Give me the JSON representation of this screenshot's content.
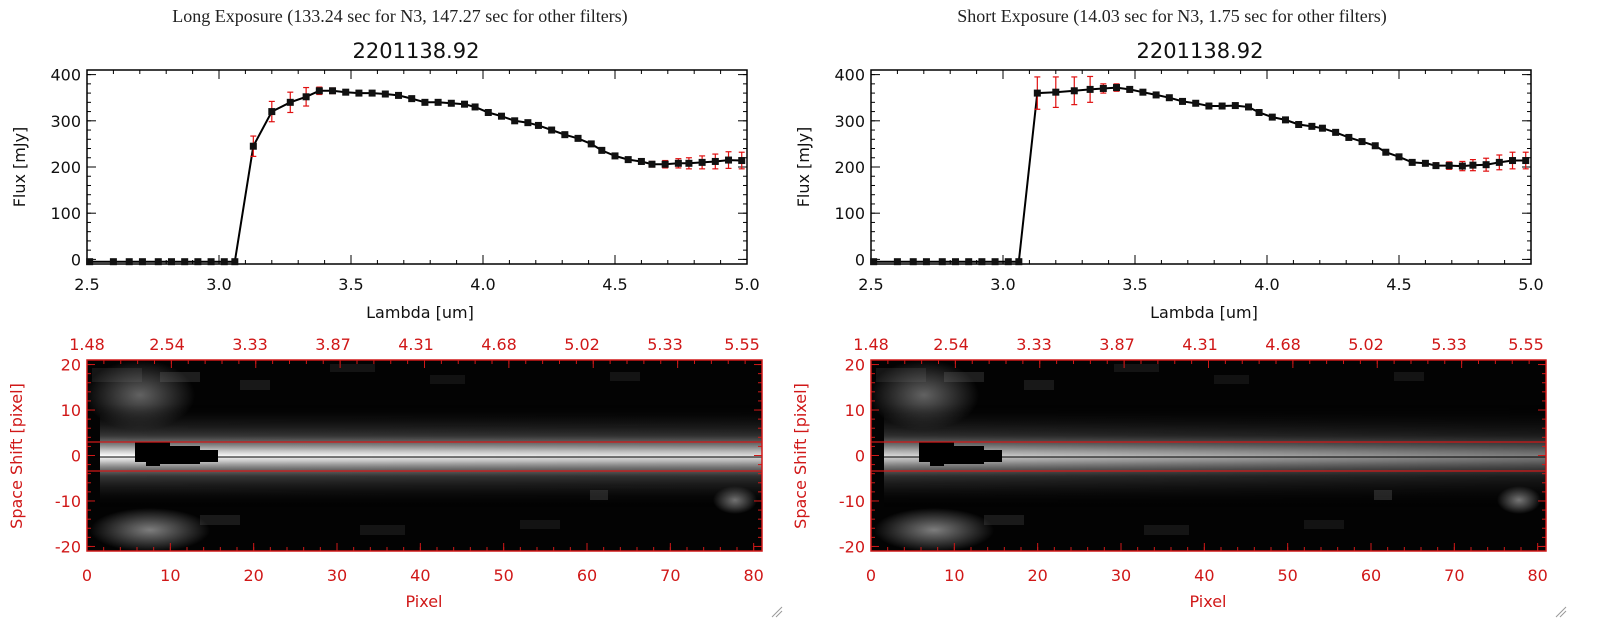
{
  "colors": {
    "data_line": "#000000",
    "error_bar": "#e01010",
    "marker": "#111111",
    "image_axis": "#d01818",
    "aperture_line": "#d01818"
  },
  "resize_grip_icon": "resize-grip-icon",
  "chart_data": [
    {
      "type": "line",
      "panel_title": "Long Exposure (133.24 sec for N3, 147.27 sec for other filters)",
      "title": "2201138.92",
      "xlabel": "Lambda [um]",
      "ylabel": "Flux [mJy]",
      "xlim": [
        2.5,
        5.0
      ],
      "ylim": [
        -10,
        410
      ],
      "xticks": [
        "2.5",
        "3.0",
        "3.5",
        "4.0",
        "4.5",
        "5.0"
      ],
      "yticks": [
        "0",
        "100",
        "200",
        "300",
        "400"
      ],
      "x": [
        2.51,
        2.6,
        2.66,
        2.71,
        2.77,
        2.82,
        2.87,
        2.92,
        2.97,
        3.02,
        3.06,
        3.13,
        3.2,
        3.27,
        3.33,
        3.38,
        3.43,
        3.48,
        3.53,
        3.58,
        3.63,
        3.68,
        3.73,
        3.78,
        3.83,
        3.88,
        3.93,
        3.97,
        4.02,
        4.07,
        4.12,
        4.17,
        4.21,
        4.26,
        4.31,
        4.36,
        4.41,
        4.45,
        4.5,
        4.55,
        4.6,
        4.64,
        4.69,
        4.74,
        4.78,
        4.83,
        4.88,
        4.93,
        4.98
      ],
      "y": [
        -5,
        -5,
        -5,
        -5,
        -5,
        -5,
        -5,
        -5,
        -5,
        -5,
        -5,
        245,
        320,
        340,
        352,
        365,
        365,
        362,
        360,
        360,
        358,
        355,
        348,
        340,
        340,
        338,
        336,
        330,
        318,
        310,
        300,
        296,
        290,
        280,
        270,
        262,
        250,
        236,
        224,
        216,
        212,
        206,
        206,
        208,
        208,
        210,
        212,
        215,
        214
      ],
      "yerr": [
        0,
        0,
        0,
        0,
        0,
        0,
        0,
        0,
        0,
        0,
        0,
        22,
        22,
        22,
        20,
        8,
        6,
        5,
        5,
        4,
        4,
        4,
        4,
        4,
        4,
        4,
        4,
        4,
        4,
        4,
        4,
        4,
        4,
        4,
        4,
        4,
        4,
        4,
        4,
        4,
        4,
        6,
        8,
        10,
        12,
        14,
        16,
        18,
        18
      ],
      "image_panel": {
        "xlabel": "Pixel",
        "ylabel": "Space Shift [pixel]",
        "xlim": [
          0,
          81
        ],
        "ylim": [
          -21,
          21
        ],
        "xticks": [
          "0",
          "10",
          "20",
          "30",
          "40",
          "50",
          "60",
          "70",
          "80"
        ],
        "yticks": [
          "-20",
          "-10",
          "0",
          "10",
          "20"
        ],
        "top_ticks": [
          "1.48",
          "2.54",
          "3.33",
          "3.87",
          "4.31",
          "4.68",
          "5.02",
          "5.33",
          "5.55"
        ],
        "aperture_rows": [
          -3,
          3
        ]
      }
    },
    {
      "type": "line",
      "panel_title": "Short Exposure (14.03 sec for N3, 1.75 sec for other filters)",
      "title": "2201138.92",
      "xlabel": "Lambda [um]",
      "ylabel": "Flux [mJy]",
      "xlim": [
        2.5,
        5.0
      ],
      "ylim": [
        -10,
        410
      ],
      "xticks": [
        "2.5",
        "3.0",
        "3.5",
        "4.0",
        "4.5",
        "5.0"
      ],
      "yticks": [
        "0",
        "100",
        "200",
        "300",
        "400"
      ],
      "x": [
        2.51,
        2.6,
        2.66,
        2.71,
        2.77,
        2.82,
        2.87,
        2.92,
        2.97,
        3.02,
        3.06,
        3.13,
        3.2,
        3.27,
        3.33,
        3.38,
        3.43,
        3.48,
        3.53,
        3.58,
        3.63,
        3.68,
        3.73,
        3.78,
        3.83,
        3.88,
        3.93,
        3.97,
        4.02,
        4.07,
        4.12,
        4.17,
        4.21,
        4.26,
        4.31,
        4.36,
        4.41,
        4.45,
        4.5,
        4.55,
        4.6,
        4.64,
        4.69,
        4.74,
        4.78,
        4.83,
        4.88,
        4.93,
        4.98
      ],
      "y": [
        -5,
        -5,
        -5,
        -5,
        -5,
        -5,
        -5,
        -5,
        -5,
        -5,
        -5,
        360,
        362,
        365,
        368,
        370,
        372,
        368,
        362,
        356,
        350,
        342,
        338,
        332,
        332,
        333,
        330,
        318,
        308,
        302,
        292,
        288,
        284,
        275,
        264,
        255,
        246,
        232,
        222,
        210,
        208,
        203,
        203,
        202,
        204,
        205,
        210,
        214,
        214
      ],
      "yerr": [
        0,
        0,
        0,
        0,
        0,
        0,
        0,
        0,
        0,
        0,
        0,
        35,
        33,
        30,
        28,
        10,
        8,
        6,
        5,
        4,
        4,
        4,
        4,
        4,
        4,
        4,
        4,
        4,
        4,
        4,
        4,
        4,
        4,
        4,
        4,
        4,
        4,
        4,
        4,
        4,
        4,
        6,
        8,
        10,
        12,
        14,
        16,
        18,
        18
      ],
      "image_panel": {
        "xlabel": "Pixel",
        "ylabel": "Space Shift [pixel]",
        "xlim": [
          0,
          81
        ],
        "ylim": [
          -21,
          21
        ],
        "xticks": [
          "0",
          "10",
          "20",
          "30",
          "40",
          "50",
          "60",
          "70",
          "80"
        ],
        "yticks": [
          "-20",
          "-10",
          "0",
          "10",
          "20"
        ],
        "top_ticks": [
          "1.48",
          "2.54",
          "3.33",
          "3.87",
          "4.31",
          "4.68",
          "5.02",
          "5.33",
          "5.55"
        ],
        "aperture_rows": [
          -3,
          3
        ]
      }
    }
  ]
}
